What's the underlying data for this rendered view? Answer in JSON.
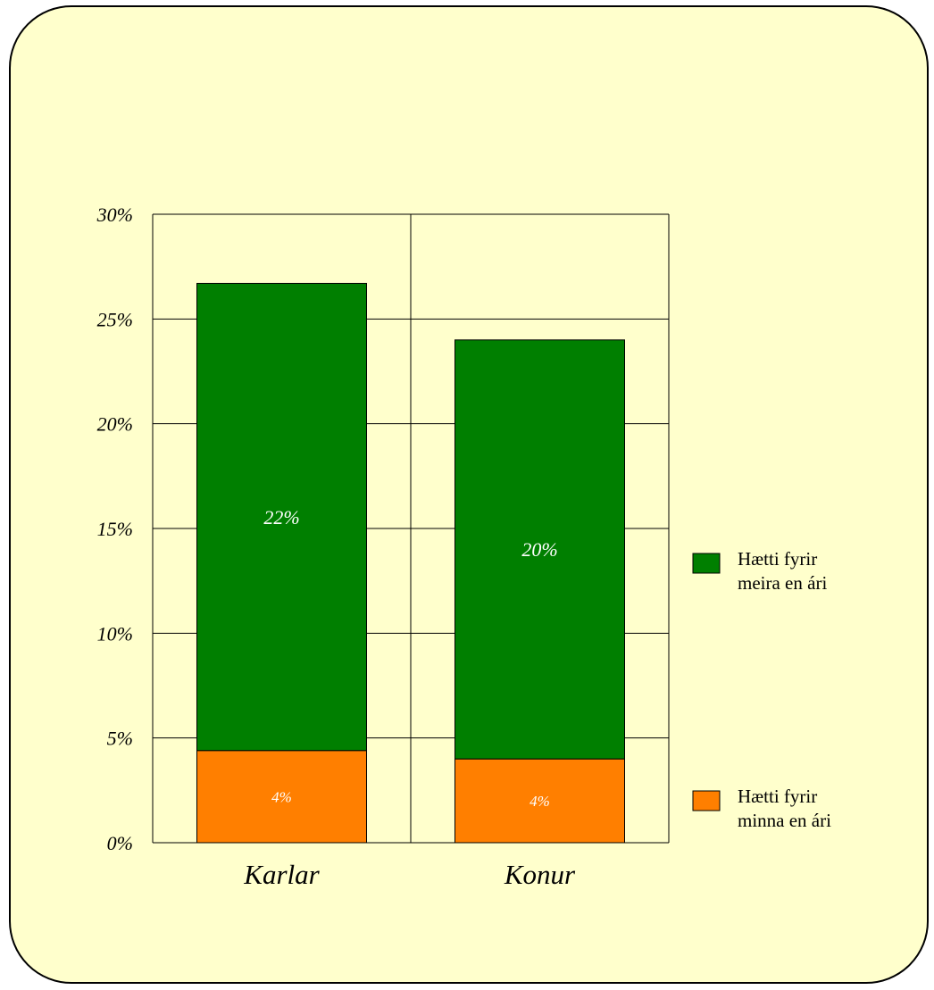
{
  "colors": {
    "background": "#ffffcc",
    "meira": "#007f00",
    "minna": "#ff7f00",
    "grid": "#000000"
  },
  "chart_data": {
    "type": "bar",
    "stacked": true,
    "categories": [
      "Karlar",
      "Konur"
    ],
    "series": [
      {
        "name": "Hætti fyrir minna en ári",
        "name_lines": [
          "Hætti fyrir",
          "minna en ári"
        ],
        "color": "#ff7f00",
        "values": [
          4.4,
          4.0
        ],
        "labels": [
          "4%",
          "4%"
        ]
      },
      {
        "name": "Hætti fyrir meira en ári",
        "name_lines": [
          "Hætti fyrir",
          "meira en ári"
        ],
        "color": "#007f00",
        "values": [
          22.3,
          20.0
        ],
        "labels": [
          "22%",
          "20%"
        ]
      }
    ],
    "ylim": [
      0,
      30
    ],
    "yticks": [
      0,
      5,
      10,
      15,
      20,
      25,
      30
    ],
    "ytick_labels": [
      "0%",
      "5%",
      "10%",
      "15%",
      "20%",
      "25%",
      "30%"
    ],
    "grid": true,
    "legend": "right"
  }
}
